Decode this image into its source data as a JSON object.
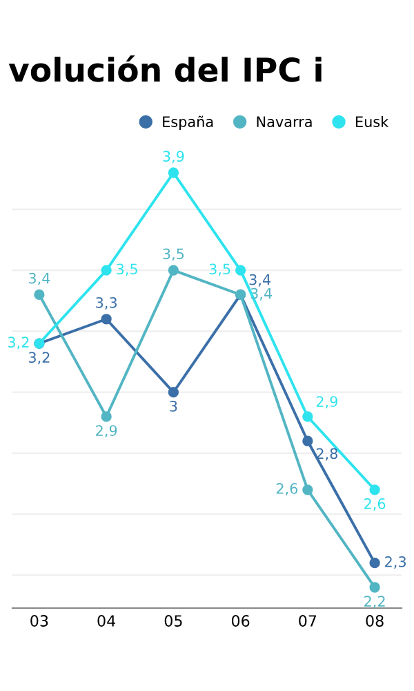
{
  "chart_data": {
    "type": "line",
    "title": "volución del IPC i",
    "categories": [
      "03",
      "04",
      "05",
      "06",
      "07",
      "08"
    ],
    "series": [
      {
        "name": "España",
        "color": "#3b6fa8",
        "values": [
          3.2,
          3.3,
          3,
          3.4,
          2.8,
          2.3
        ],
        "value_labels": [
          "3,2",
          "3,3",
          "3",
          "3,4",
          "2,8",
          "2,3"
        ]
      },
      {
        "name": "Navarra",
        "color": "#52b5c3",
        "values": [
          3.4,
          2.9,
          3.5,
          3.4,
          2.6,
          2.2
        ],
        "value_labels": [
          "3,4",
          "2,9",
          "3,5",
          "3,4",
          "2,6",
          "2,2"
        ]
      },
      {
        "name": "Eusk",
        "color": "#2ee3ee",
        "values": [
          3.2,
          3.5,
          3.9,
          3.5,
          2.9,
          2.6
        ],
        "value_labels": [
          "3,2",
          "3,5",
          "3,9",
          "3,5",
          "2,9",
          "2,6"
        ]
      }
    ],
    "tick_labels": "x",
    "grid": "y",
    "legend": "top right",
    "marker": "circle",
    "line_style": "solid"
  }
}
